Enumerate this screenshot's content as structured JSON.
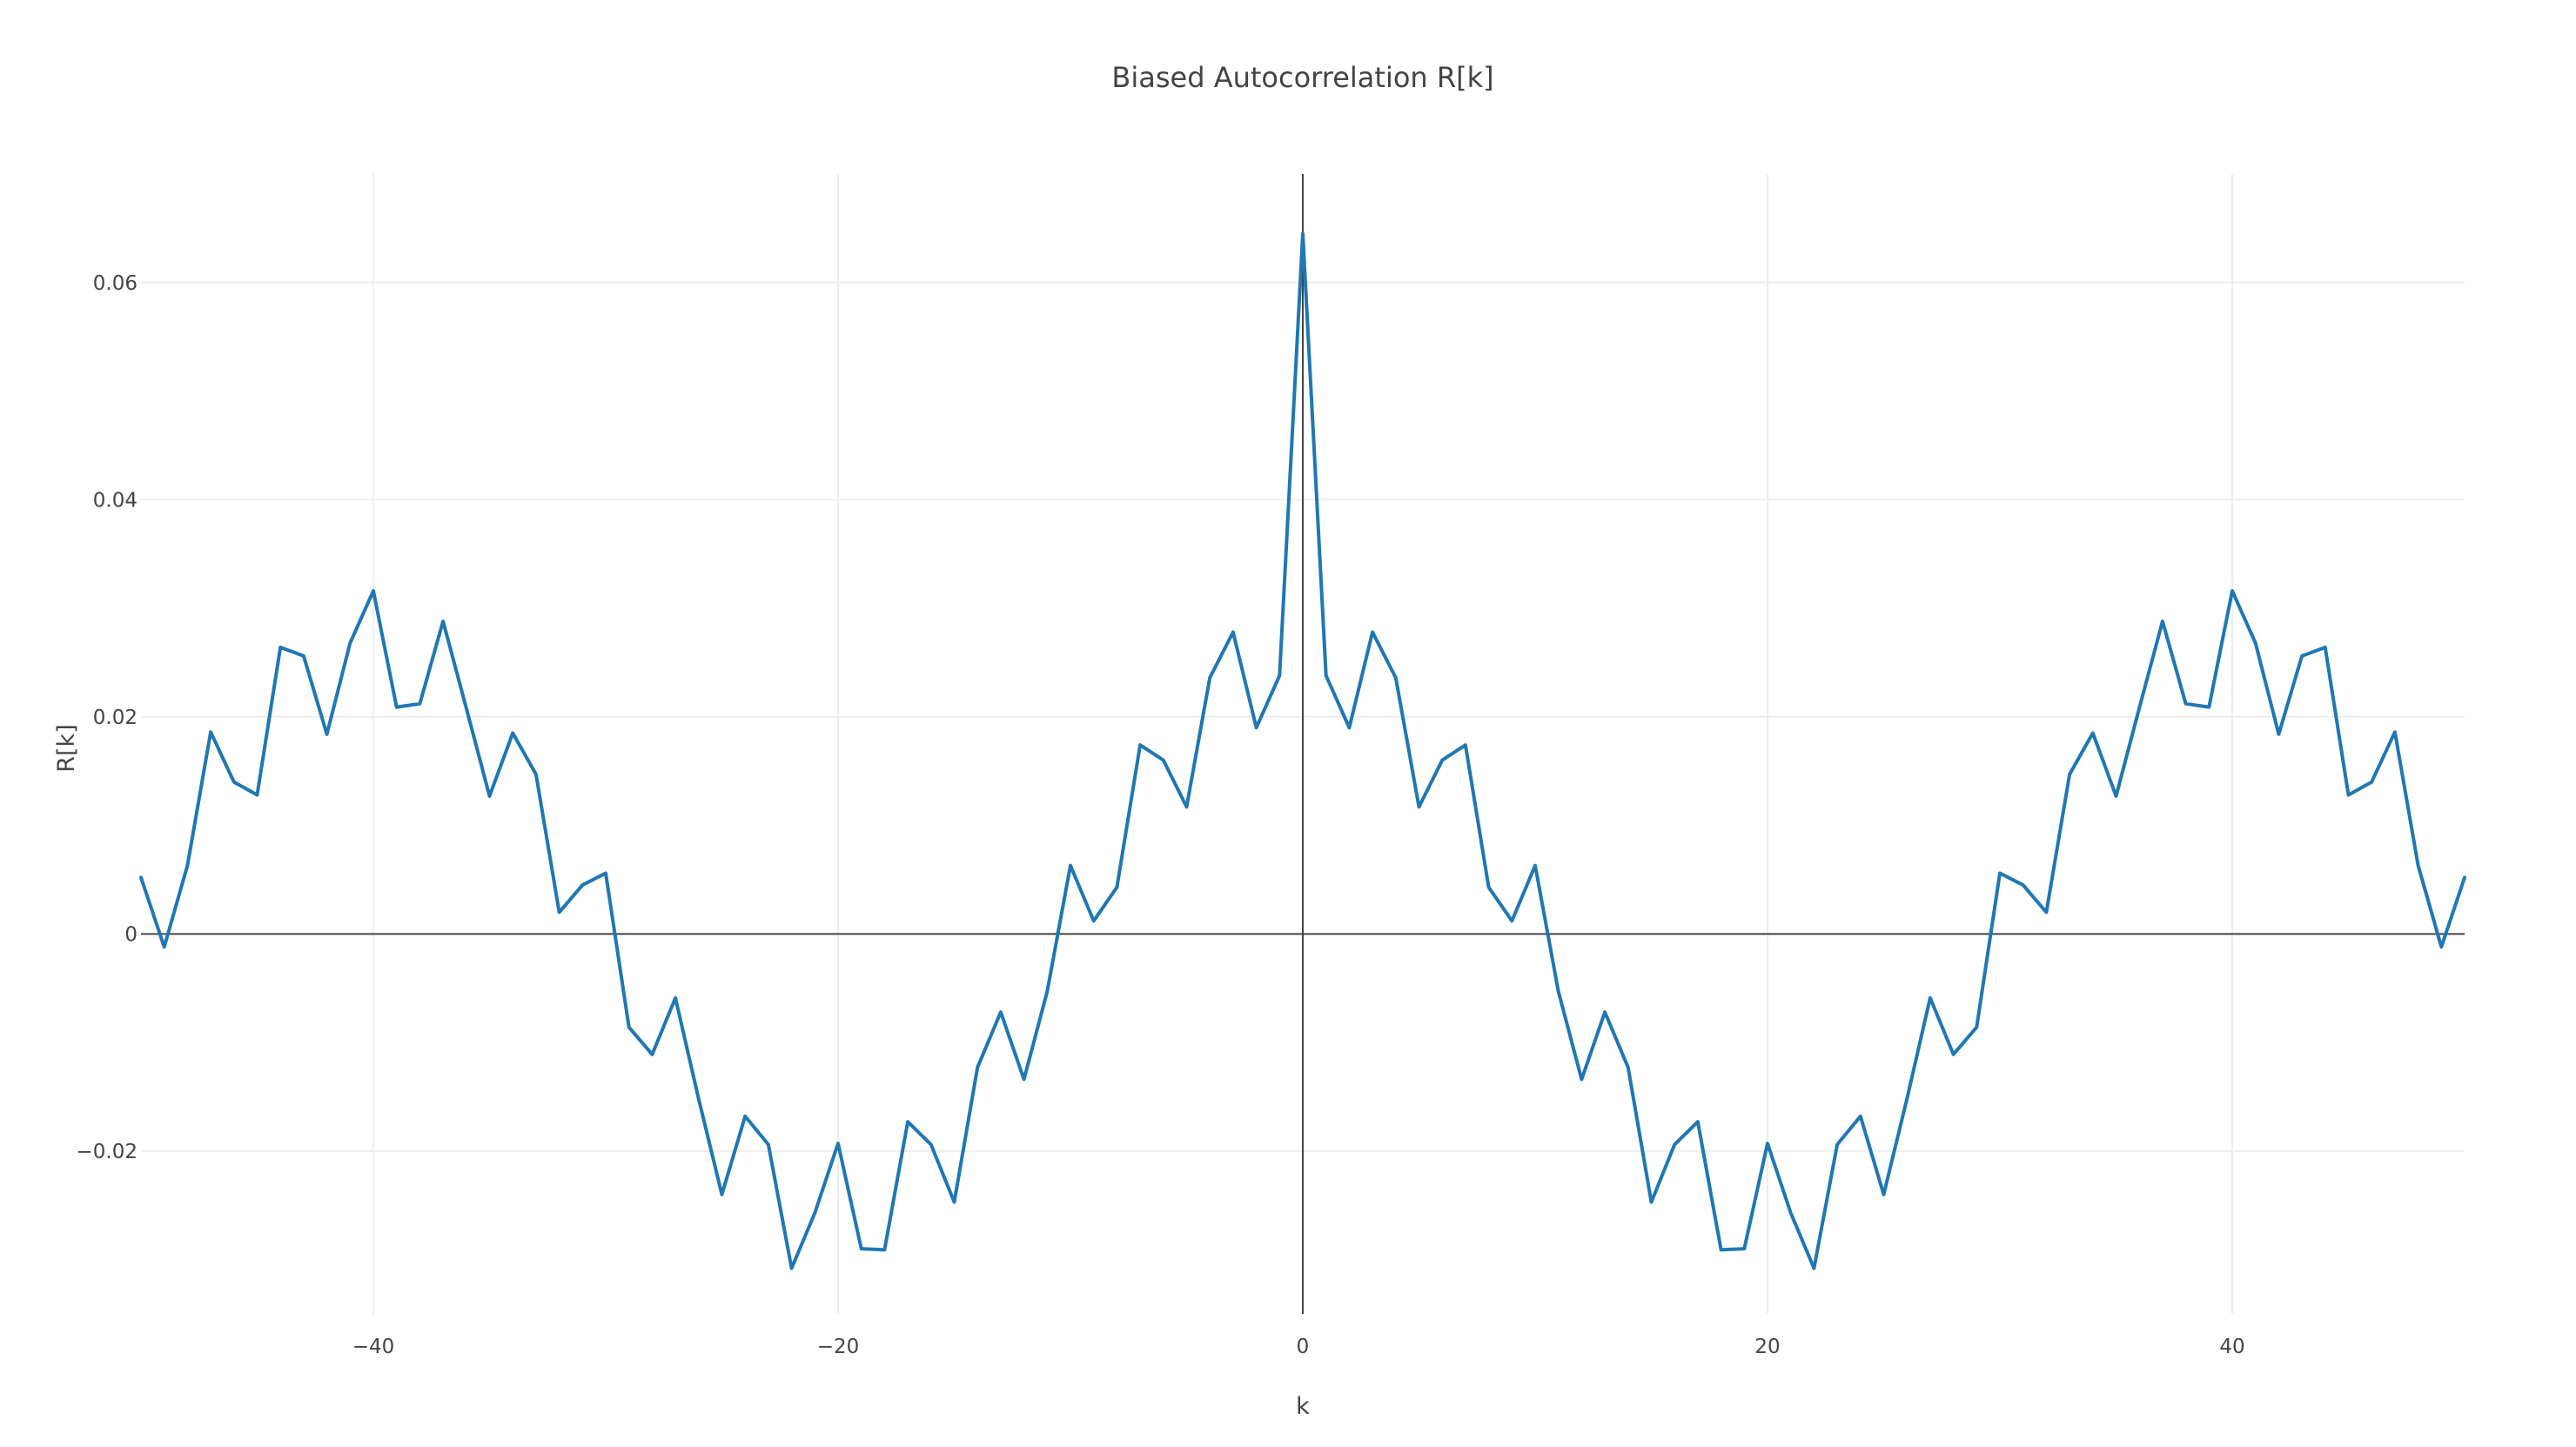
{
  "chart_data": {
    "type": "line",
    "title": "Biased Autocorrelation R[k]",
    "xlabel": "k",
    "ylabel": "R[k]",
    "xlim": [
      -50,
      50
    ],
    "ylim": [
      -0.035,
      0.07
    ],
    "grid": true,
    "zero_lines": true,
    "legend": "none",
    "x_ticks": [
      -40,
      -20,
      0,
      20,
      40
    ],
    "x_tick_labels": [
      "−40",
      "−20",
      "0",
      "20",
      "40"
    ],
    "y_ticks": [
      -0.02,
      0,
      0.02,
      0.04,
      0.06
    ],
    "y_tick_labels": [
      "−0.02",
      "0",
      "0.02",
      "0.04",
      "0.06"
    ],
    "series": [
      {
        "color": "#1f77b4",
        "x": [
          -50,
          -49,
          -48,
          -47,
          -46,
          -45,
          -44,
          -43,
          -42,
          -41,
          -40,
          -39,
          -38,
          -37,
          -36,
          -35,
          -34,
          -33,
          -32,
          -31,
          -30,
          -29,
          -28,
          -27,
          -26,
          -25,
          -24,
          -23,
          -22,
          -21,
          -20,
          -19,
          -18,
          -17,
          -16,
          -15,
          -14,
          -13,
          -12,
          -11,
          -10,
          -9,
          -8,
          -7,
          -6,
          -5,
          -4,
          -3,
          -2,
          -1,
          0,
          1,
          2,
          3,
          4,
          5,
          6,
          7,
          8,
          9,
          10,
          11,
          12,
          13,
          14,
          15,
          16,
          17,
          18,
          19,
          20,
          21,
          22,
          23,
          24,
          25,
          26,
          27,
          28,
          29,
          30,
          31,
          32,
          33,
          34,
          35,
          36,
          37,
          38,
          39,
          40,
          41,
          42,
          43,
          44,
          45,
          46,
          47,
          48,
          49,
          50
        ],
        "y": [
          0.0052,
          -0.0012,
          0.0063,
          0.0186,
          0.014,
          0.0128,
          0.0264,
          0.0256,
          0.0184,
          0.0268,
          0.0316,
          0.0209,
          0.0212,
          0.0288,
          0.0208,
          0.0127,
          0.0185,
          0.0147,
          0.002,
          0.0045,
          0.0056,
          -0.0086,
          -0.0111,
          -0.0059,
          -0.0152,
          -0.024,
          -0.0168,
          -0.0194,
          -0.0308,
          -0.0257,
          -0.0193,
          -0.029,
          -0.0291,
          -0.0173,
          -0.0194,
          -0.0247,
          -0.0123,
          -0.0072,
          -0.0134,
          -0.0053,
          0.0063,
          0.0012,
          0.0043,
          0.0174,
          0.016,
          0.0117,
          0.0236,
          0.0278,
          0.019,
          0.0238,
          0.0645,
          0.0238,
          0.019,
          0.0278,
          0.0236,
          0.0117,
          0.016,
          0.0174,
          0.0043,
          0.0012,
          0.0063,
          -0.0053,
          -0.0134,
          -0.0072,
          -0.0123,
          -0.0247,
          -0.0194,
          -0.0173,
          -0.0291,
          -0.029,
          -0.0193,
          -0.0257,
          -0.0308,
          -0.0194,
          -0.0168,
          -0.024,
          -0.0152,
          -0.0059,
          -0.0111,
          -0.0086,
          0.0056,
          0.0045,
          0.002,
          0.0147,
          0.0185,
          0.0127,
          0.0208,
          0.0288,
          0.0212,
          0.0209,
          0.0316,
          0.0268,
          0.0184,
          0.0256,
          0.0264,
          0.0128,
          0.014,
          0.0186,
          0.0063,
          -0.0012,
          0.0052
        ]
      }
    ]
  }
}
